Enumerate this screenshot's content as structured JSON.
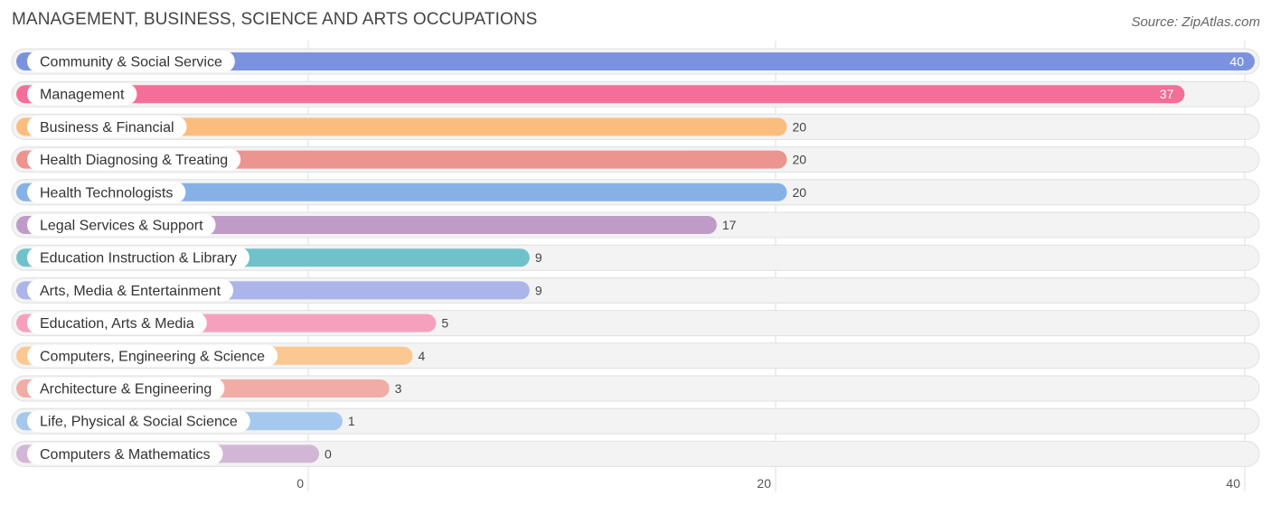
{
  "header": {
    "title": "MANAGEMENT, BUSINESS, SCIENCE AND ARTS OCCUPATIONS",
    "source": "Source: ZipAtlas.com"
  },
  "chart_data": {
    "type": "bar",
    "orientation": "horizontal",
    "title": "MANAGEMENT, BUSINESS, SCIENCE AND ARTS OCCUPATIONS",
    "xlabel": "",
    "ylabel": "",
    "xlim": [
      0,
      40
    ],
    "ticks": [
      0,
      20,
      40
    ],
    "grid": true,
    "categories": [
      "Community & Social Service",
      "Management",
      "Business & Financial",
      "Health Diagnosing & Treating",
      "Health Technologists",
      "Legal Services & Support",
      "Education Instruction & Library",
      "Arts, Media & Entertainment",
      "Education, Arts & Media",
      "Computers, Engineering & Science",
      "Architecture & Engineering",
      "Life, Physical & Social Science",
      "Computers & Mathematics"
    ],
    "values": [
      40,
      37,
      20,
      20,
      20,
      17,
      9,
      9,
      5,
      4,
      3,
      1,
      0
    ],
    "colors": [
      "#7b93df",
      "#f36e98",
      "#fbbd7e",
      "#eb9490",
      "#86b1e6",
      "#bf9bc8",
      "#6fc2c9",
      "#acb5ea",
      "#f7a0bd",
      "#fbc891",
      "#f1aca6",
      "#a5c8ee",
      "#d2b6d6"
    ]
  }
}
